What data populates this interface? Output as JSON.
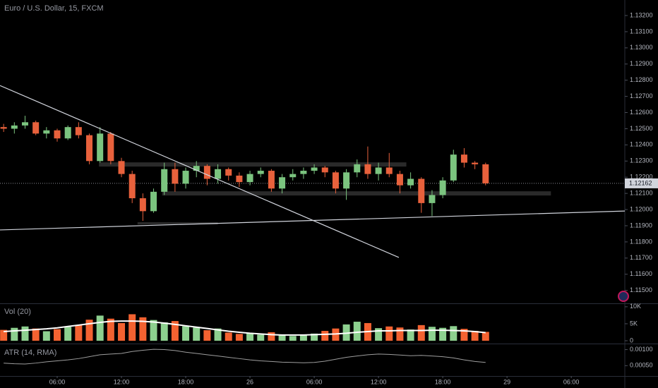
{
  "chart_data": [
    {
      "type": "candlestick",
      "title": "Euro / U.S. Dollar, 15, FXCM",
      "x": [
        1,
        2,
        3,
        4,
        5,
        6,
        7,
        8,
        9,
        10,
        11,
        12,
        13,
        14,
        15,
        16,
        17,
        18,
        19,
        20,
        21,
        22,
        23,
        24,
        25,
        26,
        27,
        28,
        29,
        30,
        31,
        32,
        33,
        34,
        35,
        36,
        37,
        38,
        39,
        40,
        41,
        42,
        43,
        44,
        45,
        46
      ],
      "open": [
        1.1251,
        1.125,
        1.1252,
        1.1254,
        1.1247,
        1.1249,
        1.1244,
        1.1251,
        1.1246,
        1.123,
        1.1247,
        1.123,
        1.1222,
        1.1207,
        1.1199,
        1.1211,
        1.1225,
        1.1216,
        1.1224,
        1.1227,
        1.1219,
        1.1225,
        1.1221,
        1.1217,
        1.1222,
        1.1224,
        1.1213,
        1.122,
        1.1222,
        1.1224,
        1.1226,
        1.1223,
        1.1213,
        1.1223,
        1.1228,
        1.1222,
        1.1226,
        1.1222,
        1.1215,
        1.1219,
        1.1204,
        1.1209,
        1.1218,
        1.1234,
        1.1229,
        1.1228
      ],
      "high": [
        1.1253,
        1.1254,
        1.1258,
        1.1255,
        1.1251,
        1.125,
        1.1252,
        1.1254,
        1.1247,
        1.1251,
        1.1248,
        1.1232,
        1.1224,
        1.121,
        1.1213,
        1.1229,
        1.1229,
        1.1226,
        1.123,
        1.1228,
        1.1228,
        1.1226,
        1.1223,
        1.1224,
        1.1226,
        1.1225,
        1.1222,
        1.1225,
        1.1226,
        1.1228,
        1.1227,
        1.1224,
        1.1225,
        1.1231,
        1.1239,
        1.1229,
        1.1235,
        1.1224,
        1.1223,
        1.122,
        1.1212,
        1.122,
        1.1237,
        1.1238,
        1.123,
        1.1229
      ],
      "low": [
        1.1248,
        1.1247,
        1.125,
        1.1246,
        1.1244,
        1.1242,
        1.1243,
        1.1244,
        1.1228,
        1.1229,
        1.1228,
        1.122,
        1.1204,
        1.1193,
        1.1198,
        1.1209,
        1.1211,
        1.1213,
        1.122,
        1.1215,
        1.1216,
        1.1218,
        1.1214,
        1.1215,
        1.122,
        1.1211,
        1.121,
        1.1218,
        1.1219,
        1.1222,
        1.122,
        1.121,
        1.1206,
        1.122,
        1.1219,
        1.1218,
        1.122,
        1.121,
        1.1213,
        1.1198,
        1.1196,
        1.1207,
        1.1217,
        1.1226,
        1.1225,
        1.1215
      ],
      "close": [
        1.125,
        1.1252,
        1.1254,
        1.1247,
        1.1249,
        1.1244,
        1.1251,
        1.1246,
        1.123,
        1.1247,
        1.123,
        1.1222,
        1.1207,
        1.1199,
        1.1211,
        1.1225,
        1.1216,
        1.1224,
        1.1227,
        1.1219,
        1.1225,
        1.1221,
        1.1217,
        1.1222,
        1.1224,
        1.1213,
        1.122,
        1.1222,
        1.1224,
        1.1226,
        1.1223,
        1.1213,
        1.1223,
        1.1228,
        1.1222,
        1.1226,
        1.1222,
        1.1215,
        1.1219,
        1.1204,
        1.1209,
        1.1218,
        1.1234,
        1.1229,
        1.1228,
        1.12162
      ],
      "up_color": "#7bc47f",
      "down_color": "#e8613c",
      "last_price": 1.12162,
      "xlim": [
        0.66,
        59.0
      ],
      "ylim": [
        1.1142,
        1.13296
      ],
      "yticks": [
        {
          "value": 1.115,
          "label": "1.11500"
        },
        {
          "value": 1.116,
          "label": "1.11600"
        },
        {
          "value": 1.117,
          "label": "1.11700"
        },
        {
          "value": 1.118,
          "label": "1.11800"
        },
        {
          "value": 1.119,
          "label": "1.11900"
        },
        {
          "value": 1.12,
          "label": "1.12000"
        },
        {
          "value": 1.121,
          "label": "1.12100"
        },
        {
          "value": 1.122,
          "label": "1.12200"
        },
        {
          "value": 1.123,
          "label": "1.12300"
        },
        {
          "value": 1.124,
          "label": "1.12400"
        },
        {
          "value": 1.125,
          "label": "1.12500"
        },
        {
          "value": 1.126,
          "label": "1.12600"
        },
        {
          "value": 1.127,
          "label": "1.12700"
        },
        {
          "value": 1.128,
          "label": "1.12800"
        },
        {
          "value": 1.129,
          "label": "1.12900"
        },
        {
          "value": 1.13,
          "label": "1.13000"
        },
        {
          "value": 1.131,
          "label": "1.13100"
        },
        {
          "value": 1.132,
          "label": "1.13200"
        }
      ],
      "trend_lines": [
        {
          "x": [
            0.66,
            37.9
          ],
          "y": [
            1.12767,
            1.11704
          ],
          "color": "#d1d4dc"
        },
        {
          "x": [
            0.66,
            59.0
          ],
          "y": [
            1.11874,
            1.11991
          ],
          "color": "#d1d4dc"
        }
      ],
      "zones": [
        {
          "x": [
            9.9,
            38.6
          ],
          "y": [
            1.12266,
            1.12292
          ],
          "color": "#2a2a2a"
        },
        {
          "x": [
            15.8,
            52.1
          ],
          "y": [
            1.12087,
            1.12113
          ],
          "color": "#2a2a2a"
        },
        {
          "x": [
            13.5,
            21.0
          ],
          "y": [
            1.11908,
            1.11922
          ],
          "color": "#2a2a2a"
        }
      ]
    },
    {
      "type": "bar",
      "title": "Vol (20)",
      "x": [
        1,
        2,
        3,
        4,
        5,
        6,
        7,
        8,
        9,
        10,
        11,
        12,
        13,
        14,
        15,
        16,
        17,
        18,
        19,
        20,
        21,
        22,
        23,
        24,
        25,
        26,
        27,
        28,
        29,
        30,
        31,
        32,
        33,
        34,
        35,
        36,
        37,
        38,
        39,
        40,
        41,
        42,
        43,
        44,
        45,
        46
      ],
      "values": [
        3200,
        3800,
        4200,
        3600,
        2800,
        3400,
        4100,
        4600,
        6200,
        7400,
        6500,
        5200,
        7800,
        6900,
        6100,
        5400,
        5800,
        4300,
        3900,
        3100,
        3600,
        2400,
        2000,
        2300,
        1800,
        2500,
        1600,
        1400,
        1700,
        2100,
        2900,
        3600,
        4800,
        5600,
        5200,
        3700,
        4200,
        3900,
        3300,
        4600,
        4100,
        3800,
        4300,
        3500,
        2900,
        2600
      ],
      "ma_values": [
        2700,
        2900,
        3100,
        3300,
        3500,
        3800,
        4200,
        4600,
        5000,
        5400,
        5700,
        5800,
        5800,
        5700,
        5500,
        5200,
        4800,
        4400,
        4000,
        3600,
        3200,
        2800,
        2500,
        2200,
        2000,
        1800,
        1700,
        1700,
        1700,
        1800,
        1900,
        2000,
        2200,
        2500,
        2700,
        2900,
        2900,
        3000,
        3000,
        3000,
        3100,
        3100,
        3000,
        2900,
        2700,
        2400
      ],
      "up_color": "#8dd08f",
      "down_color": "#f36231",
      "ma_color": "#ffffff",
      "xlim": [
        0.66,
        59.0
      ],
      "ylim": [
        0,
        10800
      ],
      "yticks": [
        0,
        {
          "value": 5000,
          "label": "5K"
        },
        {
          "value": 10000,
          "label": "10K"
        }
      ]
    },
    {
      "type": "line",
      "title": "ATR (14, RMA)",
      "x": [
        1,
        2,
        3,
        4,
        5,
        6,
        7,
        8,
        9,
        10,
        11,
        12,
        13,
        14,
        15,
        16,
        17,
        18,
        19,
        20,
        21,
        22,
        23,
        24,
        25,
        26,
        27,
        28,
        29,
        30,
        31,
        32,
        33,
        34,
        35,
        36,
        37,
        38,
        39,
        40,
        41,
        42,
        43,
        44,
        45,
        46
      ],
      "values": [
        0.00058,
        0.00056,
        0.00055,
        0.00058,
        0.00062,
        0.00065,
        0.00068,
        0.00072,
        0.00078,
        0.00084,
        0.00086,
        0.00088,
        0.00094,
        0.00098,
        0.00101,
        0.001,
        0.00097,
        0.00092,
        0.00088,
        0.00084,
        0.0008,
        0.00076,
        0.00072,
        0.00068,
        0.00065,
        0.00063,
        0.00061,
        0.0006,
        0.00059,
        0.0006,
        0.00064,
        0.0007,
        0.00076,
        0.0008,
        0.00084,
        0.00086,
        0.00085,
        0.00083,
        0.00081,
        0.00082,
        0.0008,
        0.00078,
        0.00074,
        0.00068,
        0.00063,
        0.0006
      ],
      "color": "#9e9e9e",
      "xlim": [
        0.66,
        59.0
      ],
      "ylim": [
        0.0002,
        0.0011
      ],
      "yticks": [
        {
          "value": 0.0005,
          "label": "0.00050"
        },
        {
          "value": 0.001,
          "label": "0.00100"
        }
      ],
      "xticks": [
        {
          "value": 6,
          "label": "06:00"
        },
        {
          "value": 12,
          "label": "12:00"
        },
        {
          "value": 18,
          "label": "18:00"
        },
        {
          "value": 24,
          "label": "26"
        },
        {
          "value": 30,
          "label": "06:00"
        },
        {
          "value": 36,
          "label": "12:00"
        },
        {
          "value": 42,
          "label": "18:00"
        },
        {
          "value": 48,
          "label": "29"
        },
        {
          "value": 54,
          "label": "06:00"
        }
      ]
    }
  ]
}
